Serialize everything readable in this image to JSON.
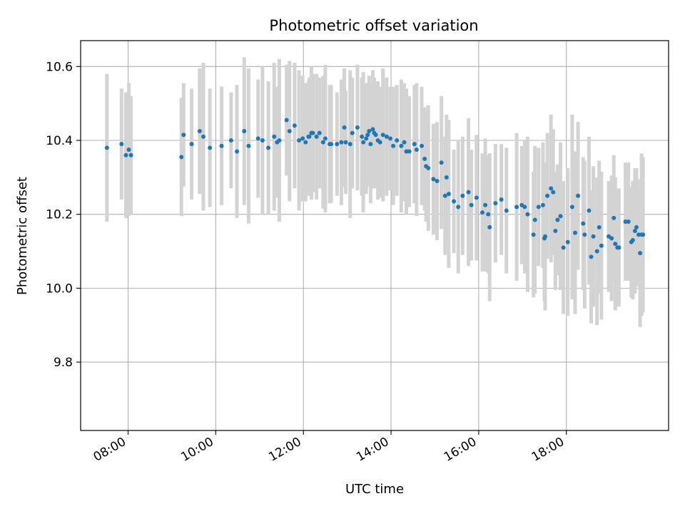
{
  "chart_data": {
    "type": "scatter",
    "title": "Photometric offset variation",
    "xlabel": "UTC time",
    "ylabel": "Photometric offset",
    "x_unit": "hours (UTC)",
    "xlim": [
      "06:55",
      "20:20"
    ],
    "ylim": [
      9.615,
      10.67
    ],
    "xticks": [
      {
        "value": "08:00",
        "label": "08:00"
      },
      {
        "value": "10:00",
        "label": "10:00"
      },
      {
        "value": "12:00",
        "label": "12:00"
      },
      {
        "value": "14:00",
        "label": "14:00"
      },
      {
        "value": "16:00",
        "label": "16:00"
      },
      {
        "value": "18:00",
        "label": "18:00"
      }
    ],
    "yticks": [
      {
        "value": 9.8,
        "label": "9.8"
      },
      {
        "value": 10.0,
        "label": "10.0"
      },
      {
        "value": 10.2,
        "label": "10.2"
      },
      {
        "value": 10.4,
        "label": "10.4"
      },
      {
        "value": 10.6,
        "label": "10.6"
      }
    ],
    "grid": true,
    "colors": {
      "points": "#1f77b4",
      "errorbars": "#d3d3d3",
      "grid": "#b0b0b0"
    },
    "series": [
      {
        "x": [
          "07:31",
          "07:51",
          "07:57",
          "08:01",
          "08:04",
          "09:13",
          "09:16",
          "09:27",
          "09:38",
          "09:43",
          "09:52",
          "10:08",
          "10:21",
          "10:29",
          "10:39",
          "10:45",
          "10:58",
          "11:04",
          "11:12",
          "11:20",
          "11:24",
          "11:27",
          "11:37",
          "11:41",
          "11:48",
          "11:54",
          "11:59",
          "12:03",
          "12:07",
          "12:08",
          "12:11",
          "12:13",
          "12:18",
          "12:22",
          "12:27",
          "12:30",
          "12:36",
          "12:38",
          "12:46",
          "12:52",
          "12:56",
          "12:58",
          "13:04",
          "13:07",
          "13:14",
          "13:20",
          "13:22",
          "13:26",
          "13:28",
          "13:30",
          "13:32",
          "13:35",
          "13:37",
          "13:39",
          "13:42",
          "13:45",
          "13:49",
          "13:54",
          "13:59",
          "14:03",
          "14:08",
          "14:14",
          "14:18",
          "14:21",
          "14:25",
          "14:32",
          "14:35",
          "14:42",
          "14:46",
          "14:48",
          "14:51",
          "14:58",
          "15:03",
          "15:09",
          "15:14",
          "15:16",
          "15:19",
          "15:26",
          "15:32",
          "15:38",
          "15:46",
          "15:50",
          "15:57",
          "16:05",
          "16:09",
          "16:13",
          "16:15",
          "16:23",
          "16:31",
          "16:38",
          "16:52",
          "16:59",
          "17:03",
          "17:07",
          "17:15",
          "17:17",
          "17:22",
          "17:28",
          "17:30",
          "17:31",
          "17:34",
          "17:39",
          "17:42",
          "17:45",
          "17:48",
          "17:52",
          "17:56",
          "18:02",
          "18:08",
          "18:12",
          "18:16",
          "18:23",
          "18:25",
          "18:31",
          "18:34",
          "18:37",
          "18:42",
          "18:45",
          "18:48",
          "18:58",
          "19:02",
          "19:05",
          "19:07",
          "19:10",
          "19:12",
          "19:21",
          "19:25",
          "19:29",
          "19:31",
          "19:34",
          "19:36",
          "19:39",
          "19:41",
          "19:43",
          "19:45"
        ],
        "y": [
          10.38,
          10.39,
          10.36,
          10.375,
          10.36,
          10.355,
          10.415,
          10.39,
          10.425,
          10.41,
          10.38,
          10.385,
          10.4,
          10.37,
          10.425,
          10.385,
          10.405,
          10.4,
          10.38,
          10.41,
          10.395,
          10.4,
          10.455,
          10.425,
          10.44,
          10.4,
          10.405,
          10.395,
          10.41,
          10.41,
          10.42,
          10.42,
          10.41,
          10.42,
          10.395,
          10.405,
          10.39,
          10.39,
          10.39,
          10.395,
          10.435,
          10.395,
          10.39,
          10.42,
          10.435,
          10.41,
          10.395,
          10.405,
          10.415,
          10.425,
          10.39,
          10.43,
          10.42,
          10.415,
          10.4,
          10.395,
          10.415,
          10.41,
          10.405,
          10.385,
          10.4,
          10.385,
          10.395,
          10.37,
          10.37,
          10.39,
          10.375,
          10.385,
          10.35,
          10.33,
          10.325,
          10.295,
          10.29,
          10.34,
          10.25,
          10.3,
          10.255,
          10.235,
          10.22,
          10.25,
          10.26,
          10.225,
          10.245,
          10.205,
          10.225,
          10.2,
          10.165,
          10.23,
          10.24,
          10.21,
          10.22,
          10.225,
          10.22,
          10.2,
          10.145,
          10.185,
          10.22,
          10.225,
          10.135,
          10.14,
          10.25,
          10.27,
          10.26,
          10.155,
          10.185,
          10.195,
          10.11,
          10.125,
          10.22,
          10.15,
          10.25,
          10.175,
          10.145,
          10.21,
          10.085,
          10.14,
          10.1,
          10.165,
          10.115,
          10.14,
          10.135,
          10.19,
          10.12,
          10.11,
          10.11,
          10.18,
          10.18,
          10.125,
          10.13,
          10.155,
          10.165,
          10.145,
          10.095,
          10.145,
          10.145
        ],
        "yerr": [
          0.2,
          0.15,
          0.17,
          0.18,
          0.16,
          0.16,
          0.14,
          0.15,
          0.17,
          0.2,
          0.16,
          0.16,
          0.13,
          0.18,
          0.2,
          0.21,
          0.16,
          0.2,
          0.18,
          0.2,
          0.15,
          0.22,
          0.15,
          0.19,
          0.17,
          0.19,
          0.17,
          0.16,
          0.15,
          0.16,
          0.18,
          0.16,
          0.17,
          0.15,
          0.18,
          0.2,
          0.16,
          0.16,
          0.14,
          0.17,
          0.16,
          0.14,
          0.2,
          0.15,
          0.17,
          0.16,
          0.19,
          0.15,
          0.14,
          0.15,
          0.16,
          0.16,
          0.15,
          0.14,
          0.16,
          0.15,
          0.18,
          0.16,
          0.14,
          0.16,
          0.15,
          0.18,
          0.16,
          0.17,
          0.15,
          0.16,
          0.18,
          0.16,
          0.14,
          0.15,
          0.17,
          0.15,
          0.16,
          0.18,
          0.16,
          0.17,
          0.2,
          0.14,
          0.18,
          0.16,
          0.2,
          0.15,
          0.17,
          0.16,
          0.18,
          0.16,
          0.2,
          0.16,
          0.15,
          0.17,
          0.2,
          0.16,
          0.18,
          0.21,
          0.17,
          0.2,
          0.16,
          0.17,
          0.17,
          0.2,
          0.17,
          0.2,
          0.17,
          0.16,
          0.15,
          0.2,
          0.18,
          0.2,
          0.25,
          0.22,
          0.2,
          0.18,
          0.2,
          0.2,
          0.18,
          0.19,
          0.2,
          0.18,
          0.2,
          0.15,
          0.17,
          0.17,
          0.18,
          0.16,
          0.16,
          0.16,
          0.16,
          0.15,
          0.16,
          0.17,
          0.16,
          0.13,
          0.2,
          0.22,
          0.21
        ]
      }
    ]
  }
}
